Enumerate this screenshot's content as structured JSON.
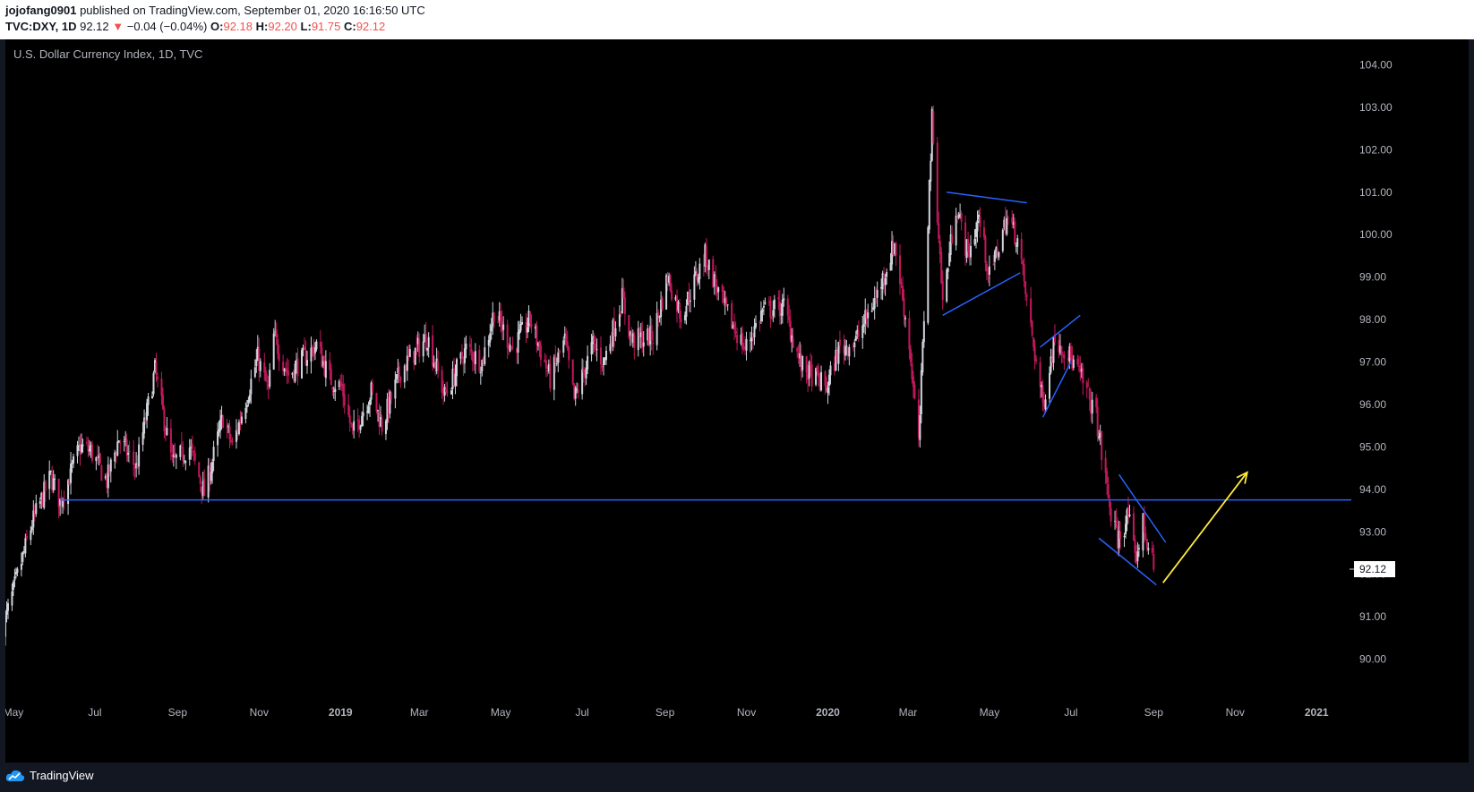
{
  "header": {
    "author": "jojofang0901",
    "published_text": " published on TradingView.com, September 01, 2020 16:16:50 UTC",
    "symbol": "TVC:DXY, 1D",
    "price": "92.12",
    "change_arrow": "▼",
    "change": "−0.04 (−0.04%)",
    "o_label": "O:",
    "o_value": "92.18",
    "h_label": "H:",
    "h_value": "92.20",
    "l_label": "L:",
    "l_value": "91.75",
    "c_label": "C:",
    "c_value": "92.12"
  },
  "chart_title": "U.S. Dollar Currency Index, 1D, TVC",
  "footer": {
    "brand": "TradingView"
  },
  "colors": {
    "up_candle": "#d1d4dc",
    "down_candle": "#c2185b",
    "trendline": "#2962ff",
    "arrow": "#ffeb3b",
    "axis_text": "#b2b5be",
    "price_tag_bg": "#ffffff"
  },
  "chart_data": {
    "type": "candlestick",
    "title": "U.S. Dollar Currency Index, 1D, TVC",
    "x_tick_labels": [
      "May",
      "Jul",
      "Sep",
      "Nov",
      "2019",
      "Mar",
      "May",
      "Jul",
      "Sep",
      "Nov",
      "2020",
      "Mar",
      "May",
      "Jul",
      "Sep",
      "Nov",
      "2021"
    ],
    "y_tick_labels": [
      "104.00",
      "103.00",
      "102.00",
      "101.00",
      "100.00",
      "99.00",
      "98.00",
      "97.00",
      "96.00",
      "95.00",
      "94.00",
      "93.00",
      "92.00",
      "91.00",
      "90.00"
    ],
    "ylim": [
      89.0,
      104.6
    ],
    "xlim": [
      "2018-04-25",
      "2021-01-25"
    ],
    "last_price": "92.12",
    "close_series": [
      {
        "date": "2018-04-24",
        "close": 90.8
      },
      {
        "date": "2018-05-01",
        "close": 91.6
      },
      {
        "date": "2018-05-15",
        "close": 93.2
      },
      {
        "date": "2018-05-29",
        "close": 94.3
      },
      {
        "date": "2018-06-05",
        "close": 93.7
      },
      {
        "date": "2018-06-20",
        "close": 95.0
      },
      {
        "date": "2018-06-28",
        "close": 94.9
      },
      {
        "date": "2018-07-10",
        "close": 94.2
      },
      {
        "date": "2018-07-19",
        "close": 95.2
      },
      {
        "date": "2018-08-01",
        "close": 94.5
      },
      {
        "date": "2018-08-15",
        "close": 96.8
      },
      {
        "date": "2018-08-28",
        "close": 94.6
      },
      {
        "date": "2018-09-10",
        "close": 95.0
      },
      {
        "date": "2018-09-21",
        "close": 93.9
      },
      {
        "date": "2018-10-05",
        "close": 95.7
      },
      {
        "date": "2018-10-12",
        "close": 95.0
      },
      {
        "date": "2018-10-31",
        "close": 97.1
      },
      {
        "date": "2018-11-08",
        "close": 96.3
      },
      {
        "date": "2018-11-12",
        "close": 97.6
      },
      {
        "date": "2018-11-23",
        "close": 96.7
      },
      {
        "date": "2018-12-14",
        "close": 97.4
      },
      {
        "date": "2018-12-24",
        "close": 96.6
      },
      {
        "date": "2019-01-02",
        "close": 96.4
      },
      {
        "date": "2019-01-10",
        "close": 95.3
      },
      {
        "date": "2019-01-24",
        "close": 96.3
      },
      {
        "date": "2019-02-01",
        "close": 95.5
      },
      {
        "date": "2019-02-15",
        "close": 96.8
      },
      {
        "date": "2019-03-07",
        "close": 97.6
      },
      {
        "date": "2019-03-20",
        "close": 96.2
      },
      {
        "date": "2019-04-05",
        "close": 97.3
      },
      {
        "date": "2019-04-17",
        "close": 97.0
      },
      {
        "date": "2019-04-26",
        "close": 98.2
      },
      {
        "date": "2019-05-10",
        "close": 97.3
      },
      {
        "date": "2019-05-23",
        "close": 98.0
      },
      {
        "date": "2019-06-07",
        "close": 96.6
      },
      {
        "date": "2019-06-18",
        "close": 97.5
      },
      {
        "date": "2019-06-25",
        "close": 96.1
      },
      {
        "date": "2019-07-09",
        "close": 97.4
      },
      {
        "date": "2019-07-17",
        "close": 97.0
      },
      {
        "date": "2019-07-31",
        "close": 98.5
      },
      {
        "date": "2019-08-07",
        "close": 97.5
      },
      {
        "date": "2019-08-23",
        "close": 97.6
      },
      {
        "date": "2019-09-03",
        "close": 99.0
      },
      {
        "date": "2019-09-13",
        "close": 98.1
      },
      {
        "date": "2019-10-01",
        "close": 99.5
      },
      {
        "date": "2019-10-15",
        "close": 98.3
      },
      {
        "date": "2019-10-31",
        "close": 97.3
      },
      {
        "date": "2019-11-13",
        "close": 98.2
      },
      {
        "date": "2019-11-29",
        "close": 98.3
      },
      {
        "date": "2019-12-12",
        "close": 96.9
      },
      {
        "date": "2019-12-31",
        "close": 96.4
      },
      {
        "date": "2020-01-09",
        "close": 97.3
      },
      {
        "date": "2020-01-22",
        "close": 97.5
      },
      {
        "date": "2020-02-07",
        "close": 98.6
      },
      {
        "date": "2020-02-20",
        "close": 99.8
      },
      {
        "date": "2020-03-02",
        "close": 97.4
      },
      {
        "date": "2020-03-09",
        "close": 95.0
      },
      {
        "date": "2020-03-19",
        "close": 102.7
      },
      {
        "date": "2020-03-27",
        "close": 98.4
      },
      {
        "date": "2020-04-06",
        "close": 100.7
      },
      {
        "date": "2020-04-15",
        "close": 99.5
      },
      {
        "date": "2020-04-23",
        "close": 100.4
      },
      {
        "date": "2020-05-01",
        "close": 99.0
      },
      {
        "date": "2020-05-14",
        "close": 100.4
      },
      {
        "date": "2020-05-22",
        "close": 99.9
      },
      {
        "date": "2020-06-01",
        "close": 97.8
      },
      {
        "date": "2020-06-10",
        "close": 96.0
      },
      {
        "date": "2020-06-19",
        "close": 97.6
      },
      {
        "date": "2020-06-29",
        "close": 97.2
      },
      {
        "date": "2020-07-09",
        "close": 96.6
      },
      {
        "date": "2020-07-20",
        "close": 95.7
      },
      {
        "date": "2020-07-31",
        "close": 93.4
      },
      {
        "date": "2020-08-05",
        "close": 92.8
      },
      {
        "date": "2020-08-13",
        "close": 93.4
      },
      {
        "date": "2020-08-18",
        "close": 92.3
      },
      {
        "date": "2020-08-24",
        "close": 93.2
      },
      {
        "date": "2020-09-01",
        "close": 92.1
      }
    ]
  }
}
